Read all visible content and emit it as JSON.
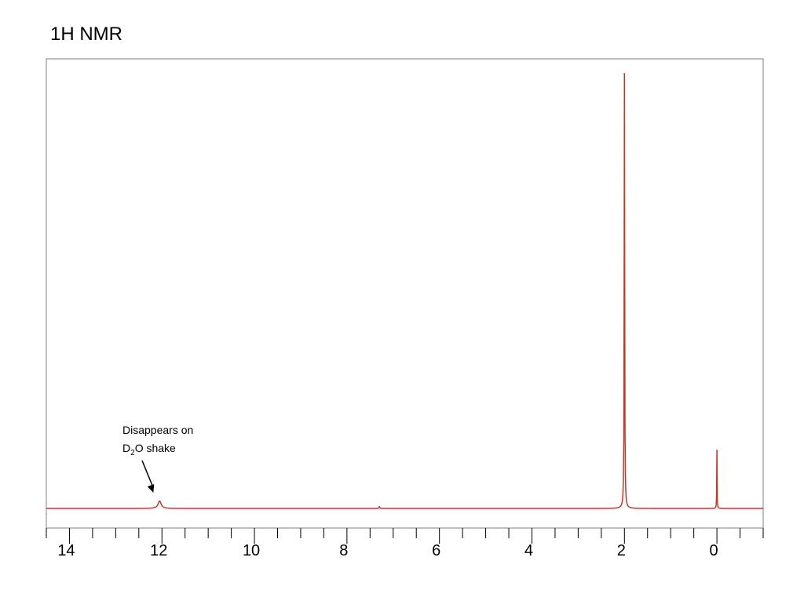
{
  "title": "1H NMR",
  "chart_data": {
    "type": "line",
    "title": "1H NMR",
    "xlabel": "",
    "ylabel": "",
    "x_axis": {
      "min": 14.5,
      "max": -1.0,
      "reversed": true,
      "tick_labels": [
        14,
        12,
        10,
        8,
        6,
        4,
        2,
        0
      ],
      "minor_step": 0.5
    },
    "series": [
      {
        "peaks": [
          {
            "ppm": 12.05,
            "relative_height": 0.017,
            "width_ppm": 0.08
          },
          {
            "ppm": 7.3,
            "relative_height": 0.004,
            "width_ppm": 0.02
          },
          {
            "ppm": 2.0,
            "relative_height": 1.0,
            "width_ppm": 0.012
          },
          {
            "ppm": 0.0,
            "relative_height": 0.135,
            "width_ppm": 0.008
          }
        ]
      }
    ],
    "color": "#c0392b",
    "annotations": [
      {
        "line1": "Disappears on",
        "line2_base": "D",
        "line2_sub": "2",
        "line2_rest": "O shake",
        "points_to_ppm": 12.05
      }
    ]
  }
}
